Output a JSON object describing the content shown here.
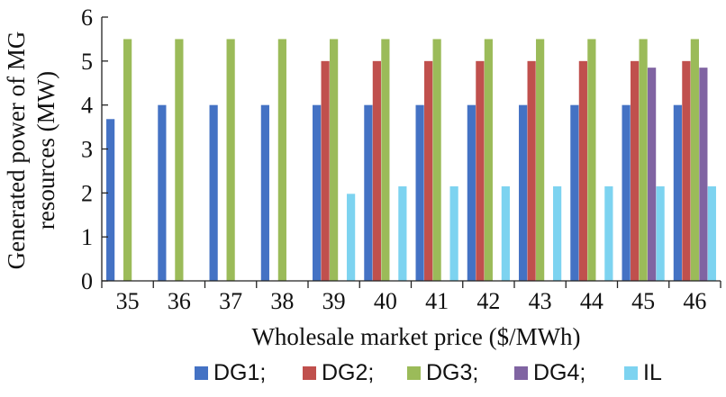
{
  "chart_data": {
    "type": "bar",
    "categories": [
      "35",
      "36",
      "37",
      "38",
      "39",
      "40",
      "41",
      "42",
      "43",
      "44",
      "45",
      "46"
    ],
    "xlabel": "Wholesale market price ($/MWh)",
    "ylabel_lines": [
      "Generated power of MG",
      "resources (MW)"
    ],
    "ylim": [
      0,
      6
    ],
    "yticks": [
      "0",
      "1",
      "2",
      "3",
      "4",
      "5",
      "6"
    ],
    "grid": false,
    "legend_position": "bottom",
    "series": [
      {
        "name": "DG1;",
        "color": "#4472C4",
        "values": [
          3.68,
          4,
          4,
          4,
          4,
          4,
          4,
          4,
          4,
          4,
          4,
          4
        ]
      },
      {
        "name": "DG2;",
        "color": "#C0504D",
        "values": [
          0,
          0,
          0,
          0,
          5,
          5,
          5,
          5,
          5,
          5,
          5,
          5
        ]
      },
      {
        "name": "DG3;",
        "color": "#9BBB59",
        "values": [
          5.5,
          5.5,
          5.5,
          5.5,
          5.5,
          5.5,
          5.5,
          5.5,
          5.5,
          5.5,
          5.5,
          5.5
        ]
      },
      {
        "name": "DG4;",
        "color": "#8064A2",
        "values": [
          0,
          0,
          0,
          0,
          0,
          0,
          0,
          0,
          0,
          0,
          4.85,
          4.85
        ]
      },
      {
        "name": "IL",
        "color": "#7DD3F0",
        "values": [
          0,
          0,
          0,
          0,
          1.98,
          2.15,
          2.15,
          2.15,
          2.15,
          2.15,
          2.15,
          2.15
        ]
      }
    ]
  }
}
